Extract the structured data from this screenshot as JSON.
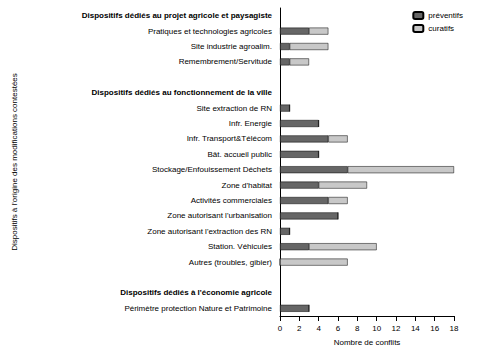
{
  "chart_data": {
    "type": "bar",
    "orientation": "horizontal",
    "stacked": true,
    "grid": false,
    "legend": "top-right",
    "x_label": "Nombre de conflits",
    "y_label": "Dispositifs à l'origine des modifications contestées",
    "categories": [
      "Dispositifs dédiés au projet agricole et paysagiste",
      "Pratiques et technologies agricoles",
      "Site industrie agroalim.",
      "Remembrement/Servitude",
      null,
      "Dispositifs dédiés au fonctionnement de la ville",
      "Site extraction de RN",
      "Infr. Energie",
      "Infr. Transport&Télécom",
      "Bât. accueil public",
      "Stockage/Enfouissement Déchets",
      "Zone d'habitat",
      "Activités commerciales",
      "Zone autorisant l'urbanisation",
      "Zone autorisant l'extraction des RN",
      "Station. Véhicules",
      "Autres (troubles, gibier)",
      null,
      "Dispositifs dédiés à l'économie agricole",
      "Périmètre protection Nature et Patrimoine"
    ],
    "series": [
      {
        "name": "préventifs",
        "color": "#666666",
        "values": [
          null,
          3,
          1,
          1,
          null,
          null,
          1,
          4,
          5,
          4,
          7,
          4,
          5,
          6,
          1,
          3,
          0,
          null,
          null,
          3
        ]
      },
      {
        "name": "curatifs",
        "color": "#c8c8c8",
        "values": [
          null,
          2,
          4,
          2,
          null,
          null,
          0,
          0,
          2,
          0,
          11,
          5,
          2,
          0,
          0,
          7,
          7,
          null,
          null,
          0
        ]
      }
    ],
    "xlim": [
      0,
      18
    ],
    "xticks": [
      0,
      2,
      4,
      6,
      8,
      10,
      12,
      14,
      16,
      18
    ]
  }
}
